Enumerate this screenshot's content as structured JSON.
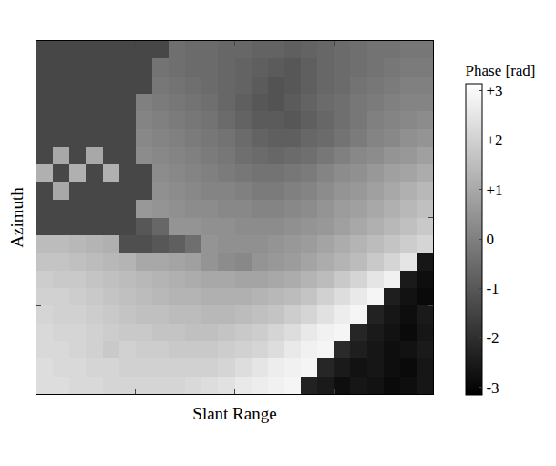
{
  "chart_data": {
    "type": "heatmap",
    "x_label": "Slant Range",
    "y_label": "Azimuth",
    "xlim": [
      -0.5,
      23.5
    ],
    "ylim": [
      19.5,
      -0.5
    ],
    "xticks": [
      5.5,
      11.5,
      17.5
    ],
    "yticks": [
      4.5,
      9.5,
      14.5
    ],
    "tick_labels": false,
    "grid": false,
    "colorbar": {
      "title": "Phase [rad]",
      "range": [
        -3.1416,
        3.1416
      ],
      "ticks": [
        {
          "value": 3,
          "label": "+3"
        },
        {
          "value": 2,
          "label": "+2"
        },
        {
          "value": 1,
          "label": "+1"
        },
        0,
        -1,
        -2,
        -3
      ]
    },
    "cells": [
      [
        -1.4,
        -1.4,
        -1.4,
        -1.4,
        -1.4,
        -1.4,
        -1.4,
        -1.4,
        -0.4,
        -0.5,
        -0.5,
        -0.6,
        -0.6,
        -0.7,
        -0.7,
        -0.8,
        -0.7,
        -0.6,
        -0.5,
        -0.4,
        -0.3,
        -0.3,
        -0.2,
        -0.2
      ],
      [
        -1.4,
        -1.4,
        -1.4,
        -1.4,
        -1.4,
        -1.4,
        -1.4,
        -0.3,
        -0.4,
        -0.5,
        -0.5,
        -0.6,
        -0.7,
        -0.8,
        -0.9,
        -1.0,
        -0.8,
        -0.6,
        -0.5,
        -0.4,
        -0.3,
        -0.2,
        -0.1,
        -0.1
      ],
      [
        -1.4,
        -1.4,
        -1.4,
        -1.4,
        -1.4,
        -1.4,
        -1.4,
        -0.2,
        -0.3,
        -0.4,
        -0.5,
        -0.6,
        -0.7,
        -0.9,
        -1.1,
        -1.0,
        -0.8,
        -0.6,
        -0.5,
        -0.3,
        -0.2,
        -0.1,
        0.0,
        0.0
      ],
      [
        -1.4,
        -1.4,
        -1.4,
        -1.4,
        -1.4,
        -1.4,
        0.0,
        -0.1,
        -0.2,
        -0.3,
        -0.4,
        -0.6,
        -0.8,
        -1.0,
        -1.1,
        -0.9,
        -0.7,
        -0.5,
        -0.4,
        -0.2,
        -0.1,
        0.0,
        0.1,
        0.1
      ],
      [
        -1.4,
        -1.4,
        -1.4,
        -1.4,
        -1.4,
        -1.4,
        0.1,
        0.0,
        -0.1,
        -0.2,
        -0.3,
        -0.5,
        -0.7,
        -0.9,
        -0.9,
        -1.0,
        -0.8,
        -0.6,
        -0.4,
        -0.2,
        0.0,
        0.1,
        0.2,
        0.3
      ],
      [
        -1.4,
        -1.4,
        -1.4,
        -1.4,
        -1.4,
        -1.4,
        0.2,
        0.1,
        0.0,
        -0.1,
        -0.2,
        -0.3,
        -0.5,
        -0.7,
        -0.8,
        -0.8,
        -0.6,
        -0.5,
        -0.3,
        -0.1,
        0.1,
        0.2,
        0.4,
        0.5
      ],
      [
        -1.4,
        1.0,
        -1.4,
        1.0,
        -1.4,
        -1.4,
        0.3,
        0.2,
        0.1,
        0.0,
        -0.1,
        -0.2,
        -0.4,
        -0.5,
        -0.6,
        -0.5,
        -0.4,
        -0.2,
        0.0,
        0.2,
        0.3,
        0.5,
        0.6,
        0.8
      ],
      [
        1.2,
        -1.4,
        1.2,
        -1.4,
        1.2,
        -1.4,
        -1.4,
        0.3,
        0.2,
        0.1,
        0.0,
        -0.1,
        -0.2,
        -0.3,
        -0.3,
        -0.2,
        -0.1,
        0.1,
        0.3,
        0.4,
        0.6,
        0.8,
        0.9,
        1.1
      ],
      [
        -1.4,
        1.0,
        -1.4,
        -1.4,
        -1.4,
        -1.4,
        -1.4,
        0.4,
        0.3,
        0.2,
        0.1,
        0.1,
        0.0,
        -0.1,
        -0.1,
        0.0,
        0.1,
        0.3,
        0.5,
        0.6,
        0.8,
        1.0,
        1.2,
        1.4
      ],
      [
        -1.4,
        -1.4,
        -1.4,
        -1.4,
        -1.4,
        -1.4,
        0.6,
        0.5,
        0.4,
        0.3,
        0.3,
        0.2,
        0.2,
        0.1,
        0.1,
        0.2,
        0.3,
        0.5,
        0.7,
        0.8,
        1.0,
        1.2,
        1.4,
        1.6
      ],
      [
        -1.4,
        -1.4,
        -1.4,
        -1.4,
        -1.4,
        -1.4,
        -1.0,
        -0.6,
        0.5,
        0.5,
        0.4,
        0.4,
        0.3,
        0.3,
        0.3,
        0.4,
        0.5,
        0.6,
        0.8,
        1.0,
        1.2,
        1.4,
        1.6,
        1.8
      ],
      [
        1.5,
        1.5,
        1.4,
        1.3,
        1.2,
        -1.2,
        -1.2,
        -1.0,
        -0.8,
        -0.4,
        0.5,
        0.4,
        0.4,
        0.4,
        0.5,
        0.6,
        0.7,
        0.9,
        1.1,
        1.3,
        1.5,
        1.7,
        1.9,
        2.1
      ],
      [
        1.7,
        1.7,
        1.6,
        1.5,
        1.4,
        1.3,
        1.0,
        1.0,
        0.9,
        0.8,
        0.5,
        0.3,
        0.2,
        0.5,
        0.6,
        0.7,
        0.9,
        1.1,
        1.3,
        1.5,
        1.8,
        2.1,
        2.5,
        -2.6
      ],
      [
        1.9,
        1.8,
        1.8,
        1.7,
        1.6,
        1.5,
        1.4,
        1.3,
        1.2,
        1.1,
        1.0,
        1.0,
        0.9,
        0.9,
        1.0,
        1.1,
        1.3,
        1.5,
        1.8,
        2.1,
        2.5,
        2.8,
        -2.5,
        -2.8
      ],
      [
        2.0,
        2.0,
        1.9,
        1.8,
        1.7,
        1.6,
        1.5,
        1.4,
        1.3,
        1.3,
        1.2,
        1.2,
        1.2,
        1.3,
        1.4,
        1.5,
        1.7,
        2.0,
        2.3,
        2.6,
        2.9,
        -2.4,
        -2.7,
        -2.9
      ],
      [
        2.1,
        2.0,
        2.0,
        1.9,
        1.8,
        1.7,
        1.6,
        1.6,
        1.5,
        1.5,
        1.4,
        1.4,
        1.5,
        1.6,
        1.7,
        1.9,
        2.1,
        2.4,
        2.7,
        2.9,
        -2.3,
        -2.6,
        -2.8,
        -2.5
      ],
      [
        2.2,
        2.1,
        2.1,
        2.0,
        1.9,
        1.8,
        1.8,
        1.7,
        1.7,
        1.6,
        1.6,
        1.7,
        1.8,
        1.9,
        2.1,
        2.3,
        2.6,
        2.8,
        2.9,
        -2.2,
        -2.5,
        -2.7,
        -2.9,
        -2.6
      ],
      [
        2.2,
        2.2,
        2.1,
        2.0,
        1.8,
        2.0,
        1.9,
        1.9,
        1.8,
        1.8,
        1.8,
        1.9,
        2.0,
        2.1,
        2.3,
        2.6,
        2.8,
        2.9,
        -2.1,
        -2.4,
        -2.6,
        -2.8,
        -2.7,
        -2.5
      ],
      [
        2.3,
        2.2,
        2.2,
        2.1,
        2.1,
        2.0,
        2.0,
        2.0,
        2.0,
        2.0,
        2.0,
        2.1,
        2.3,
        2.5,
        2.7,
        2.8,
        2.9,
        -2.2,
        -2.5,
        -2.7,
        -2.6,
        -2.8,
        -2.9,
        -2.6
      ],
      [
        2.3,
        2.3,
        2.2,
        2.2,
        2.1,
        2.1,
        2.1,
        2.1,
        2.1,
        2.2,
        2.3,
        2.4,
        2.6,
        2.7,
        2.8,
        2.9,
        -2.3,
        -2.5,
        -2.8,
        -2.6,
        -2.7,
        -2.9,
        -2.8,
        -2.6
      ]
    ]
  }
}
